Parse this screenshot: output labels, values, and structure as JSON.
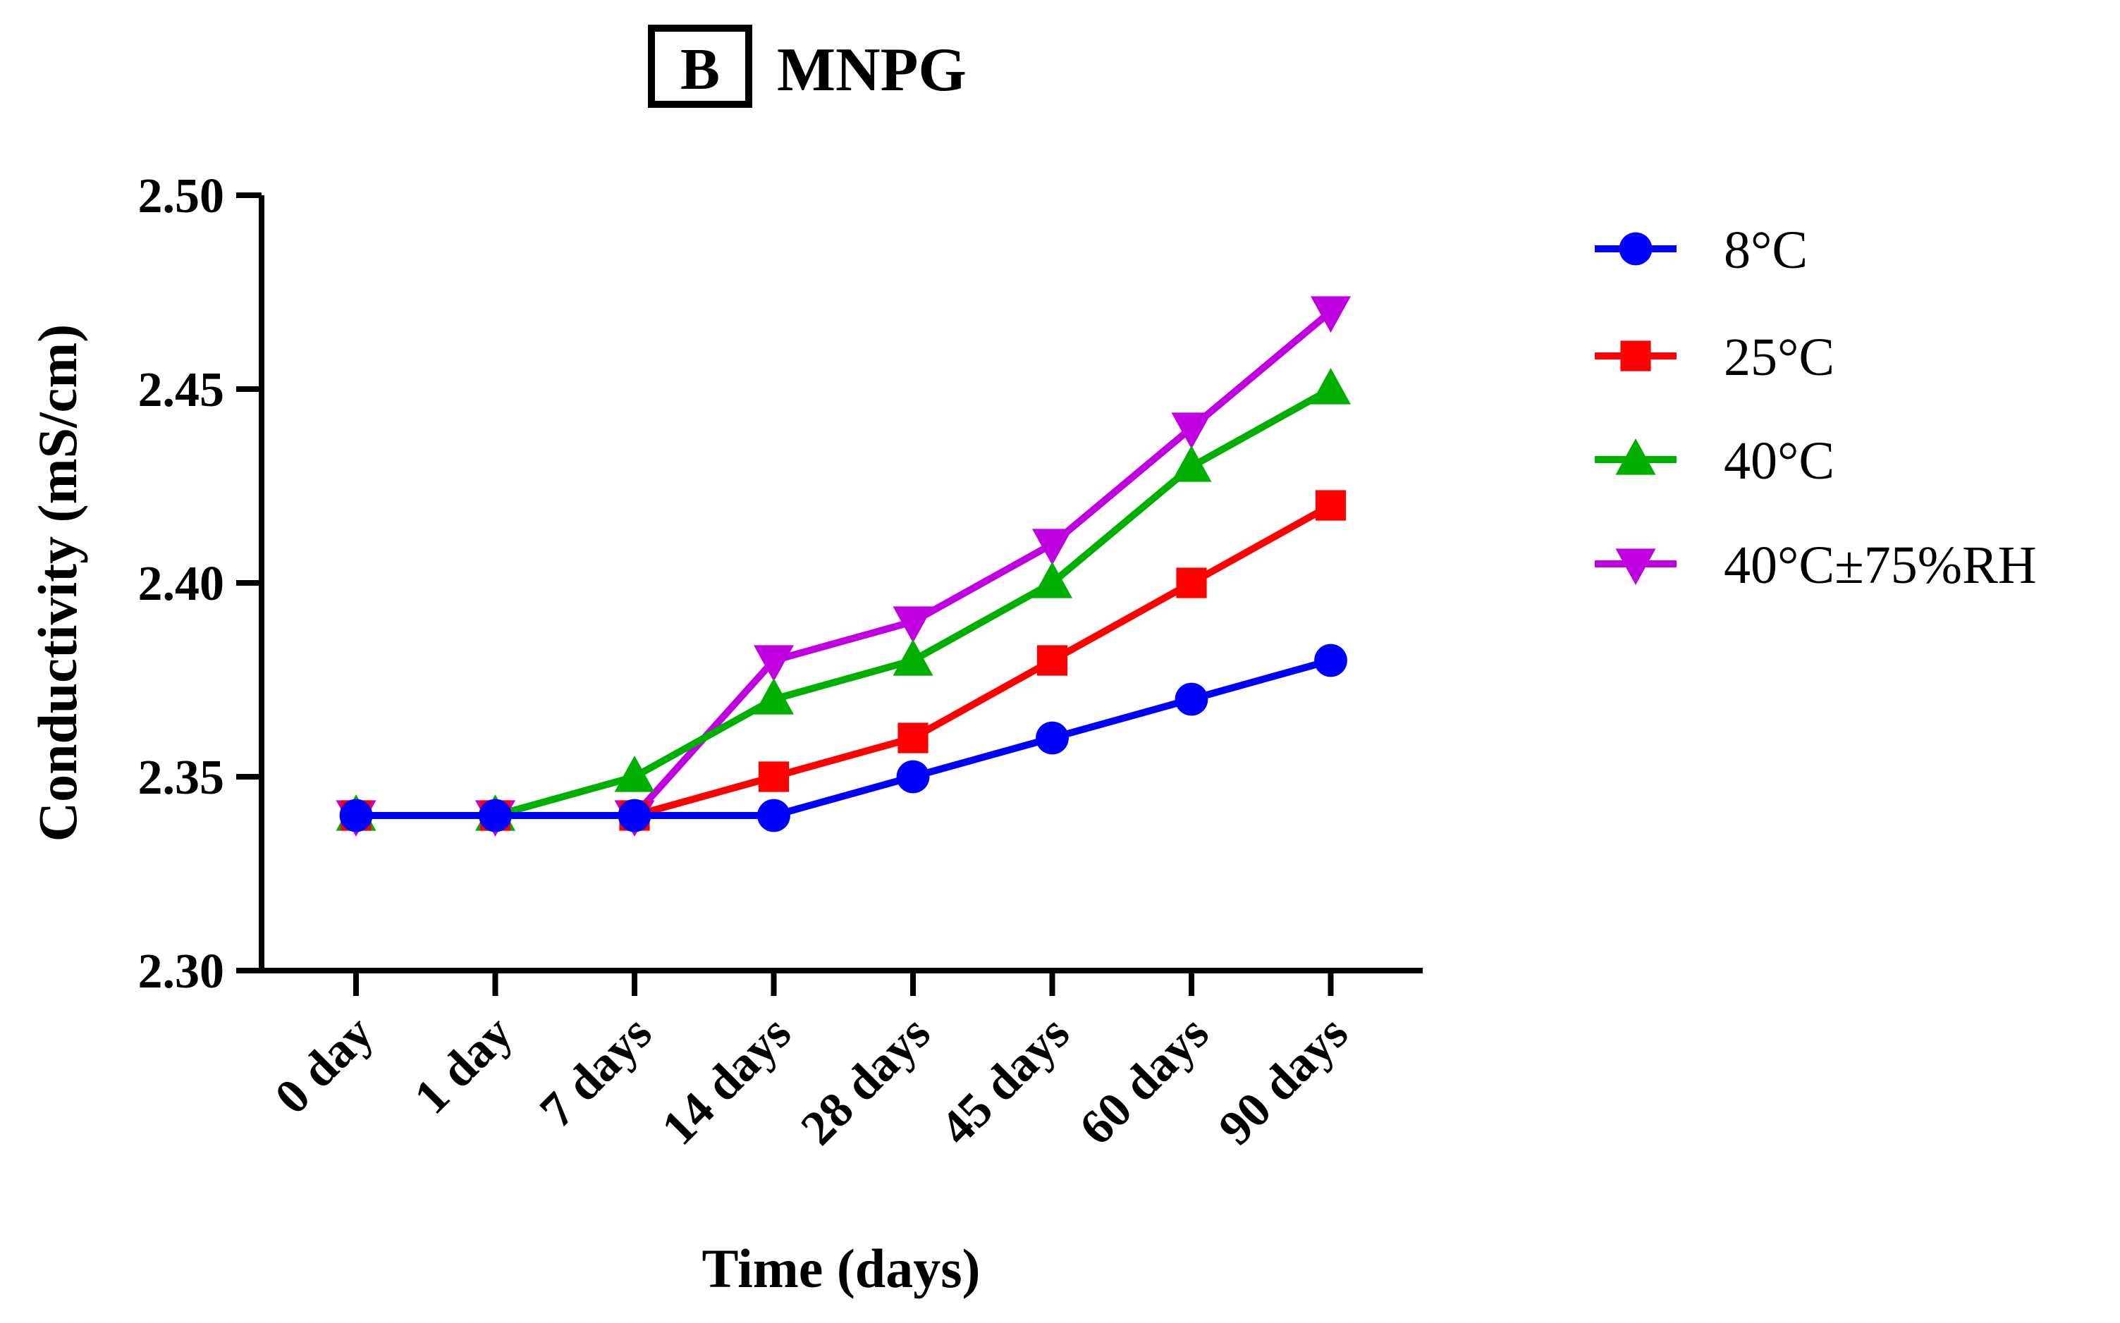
{
  "panel": {
    "letter": "B",
    "title": "MNPG"
  },
  "chart_data": {
    "type": "line",
    "title": "MNPG",
    "xlabel": "Time (days)",
    "ylabel": "Conductivity (mS/cm)",
    "categories": [
      "0 day",
      "1 day",
      "7 days",
      "14 days",
      "28 days",
      "45 days",
      "60 days",
      "90 days"
    ],
    "ylim": [
      2.3,
      2.5
    ],
    "yticks": [
      "2.30",
      "2.35",
      "2.40",
      "2.45",
      "2.50"
    ],
    "grid": false,
    "legend_position": "right",
    "series": [
      {
        "name": "8°C",
        "color": "#0000ff",
        "marker": "circle",
        "values": [
          2.34,
          2.34,
          2.34,
          2.34,
          2.35,
          2.36,
          2.37,
          2.38
        ]
      },
      {
        "name": "25°C",
        "color": "#ff0000",
        "marker": "square",
        "values": [
          2.34,
          2.34,
          2.34,
          2.35,
          2.36,
          2.38,
          2.4,
          2.42
        ]
      },
      {
        "name": "40°C",
        "color": "#00b000",
        "marker": "triangle-up",
        "values": [
          2.34,
          2.34,
          2.35,
          2.37,
          2.38,
          2.4,
          2.43,
          2.45
        ]
      },
      {
        "name": "40°C±75%RH",
        "color": "#c000e0",
        "marker": "triangle-down",
        "values": [
          2.34,
          2.34,
          2.34,
          2.38,
          2.39,
          2.41,
          2.44,
          2.47
        ]
      }
    ]
  }
}
